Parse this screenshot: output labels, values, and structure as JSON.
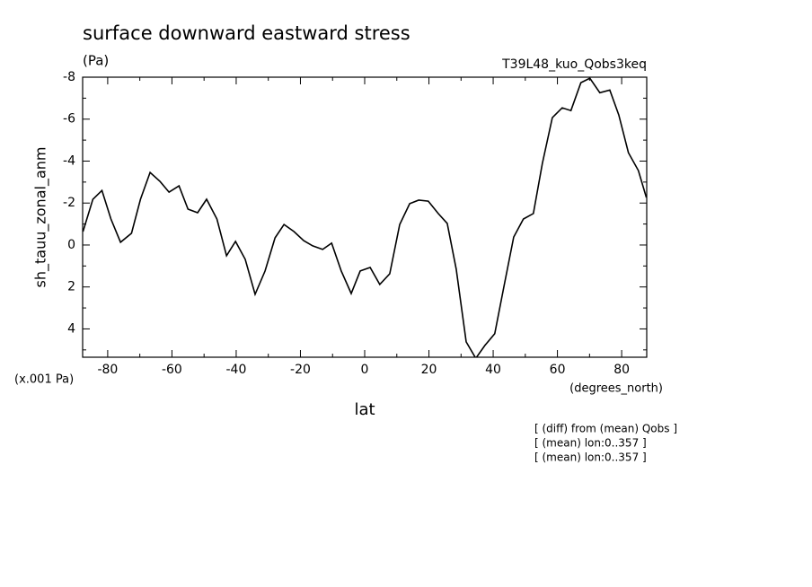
{
  "chart_data": {
    "type": "line",
    "title": "surface downward eastward stress",
    "units": "(Pa)",
    "dataset": "T39L48_kuo_Qobs3keq",
    "ylabel": "sh_tauu_zonal_anm",
    "yscale_note": "(x.001 Pa)",
    "xunits": "(degrees_north)",
    "xlabel": "lat",
    "notes": [
      "[ (diff) from (mean) Qobs ]",
      "[ (mean) lon:0..357 ]",
      "[ (mean) lon:0..357 ]"
    ],
    "xlim": [
      -87.8,
      87.8
    ],
    "ylim": [
      5.35,
      -8
    ],
    "xticks": [
      -80,
      -60,
      -40,
      -20,
      0,
      20,
      40,
      60,
      80
    ],
    "xminorticks": [
      -70,
      -50,
      -30,
      -10,
      10,
      30,
      50,
      70
    ],
    "yticks": [
      -8,
      -6,
      -4,
      -2,
      0,
      2,
      4
    ],
    "yminorticks": [
      -7,
      -5,
      -3,
      -1,
      1,
      3,
      5
    ],
    "color": "#000000",
    "x": [
      -87.7,
      -84.6,
      -81.8,
      -79,
      -76,
      -72.6,
      -69.8,
      -66.8,
      -63.7,
      -60.9,
      -57.8,
      -55,
      -52,
      -49.2,
      -46,
      -43,
      -40.2,
      -37.2,
      -34.1,
      -31,
      -27.9,
      -25.1,
      -22,
      -19,
      -16.2,
      -13.1,
      -10.3,
      -7.3,
      -4.2,
      -1.4,
      1.7,
      4.7,
      7.8,
      10.9,
      14,
      16.8,
      19.8,
      22.9,
      25.7,
      28.5,
      31.6,
      34.6,
      37.4,
      40.5,
      43.3,
      46.4,
      49.4,
      52.5,
      55.3,
      58.4,
      61.5,
      64.2,
      67.3,
      70.1,
      73.2,
      76.3,
      79.1,
      82.1,
      85.2,
      87.7
    ],
    "values": [
      -0.64,
      -2.18,
      -2.6,
      -1.24,
      -0.13,
      -0.56,
      -2.18,
      -3.46,
      -3.03,
      -2.52,
      -2.82,
      -1.71,
      -1.54,
      -2.18,
      -1.24,
      0.51,
      -0.17,
      0.68,
      2.35,
      1.24,
      -0.34,
      -0.98,
      -0.64,
      -0.21,
      0.04,
      0.21,
      -0.09,
      1.24,
      2.31,
      1.24,
      1.07,
      1.88,
      1.37,
      -0.98,
      -1.97,
      -2.14,
      -2.09,
      -1.5,
      -1.03,
      1.15,
      4.62,
      5.4,
      4.79,
      4.23,
      2.01,
      -0.38,
      -1.24,
      -1.5,
      -3.89,
      -6.07,
      -6.54,
      -6.41,
      -7.74,
      -7.95,
      -7.26,
      -7.39,
      -6.2,
      -4.4,
      -3.55,
      -2.26
    ]
  }
}
